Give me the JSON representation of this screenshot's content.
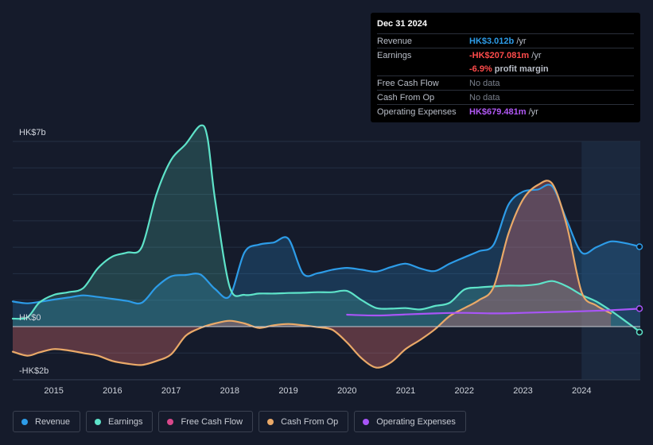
{
  "tooltip": {
    "date": "Dec 31 2024",
    "rows": [
      {
        "label": "Revenue",
        "value": "HK$3.012b",
        "suffix": " /yr",
        "color": "#2d9ce8"
      },
      {
        "label": "Earnings",
        "value": "-HK$207.081m",
        "suffix": " /yr",
        "color": "#ff4b4b"
      },
      {
        "label": "",
        "value": "-6.9%",
        "suffix": " profit margin",
        "color": "#ff4b4b"
      },
      {
        "label": "Free Cash Flow",
        "value": "No data",
        "suffix": "",
        "color": "#7a808c"
      },
      {
        "label": "Cash From Op",
        "value": "No data",
        "suffix": "",
        "color": "#7a808c"
      },
      {
        "label": "Operating Expenses",
        "value": "HK$679.481m",
        "suffix": " /yr",
        "color": "#b158f5"
      }
    ]
  },
  "legend": [
    {
      "label": "Revenue",
      "color": "#2d9ce8"
    },
    {
      "label": "Earnings",
      "color": "#5ee3c9"
    },
    {
      "label": "Free Cash Flow",
      "color": "#d9488b"
    },
    {
      "label": "Cash From Op",
      "color": "#eaa968"
    },
    {
      "label": "Operating Expenses",
      "color": "#a855f7"
    }
  ],
  "chart_data": {
    "type": "area",
    "y_axis_labels": [
      "HK$7b",
      "HK$0",
      "-HK$2b"
    ],
    "ylim": [
      -2,
      7
    ],
    "xlim": [
      2014.3,
      2025.0
    ],
    "x_ticks": [
      2015,
      2016,
      2017,
      2018,
      2019,
      2020,
      2021,
      2022,
      2023,
      2024
    ],
    "x_tick_labels": [
      "2015",
      "2016",
      "2017",
      "2018",
      "2019",
      "2020",
      "2021",
      "2022",
      "2023",
      "2024"
    ],
    "forecast_start": 2024.0,
    "series": [
      {
        "name": "Revenue",
        "color": "#2d9ce8",
        "x": [
          2014.3,
          2014.55,
          2014.8,
          2015.0,
          2015.25,
          2015.5,
          2015.75,
          2016.0,
          2016.25,
          2016.5,
          2016.75,
          2017.0,
          2017.25,
          2017.5,
          2017.75,
          2018.0,
          2018.25,
          2018.5,
          2018.75,
          2019.0,
          2019.25,
          2019.5,
          2019.75,
          2020.0,
          2020.25,
          2020.5,
          2020.75,
          2021.0,
          2021.25,
          2021.5,
          2021.75,
          2022.0,
          2022.25,
          2022.5,
          2022.75,
          2023.0,
          2023.25,
          2023.5,
          2023.75,
          2024.0,
          2024.25,
          2024.5,
          2024.75,
          2025.0
        ],
        "values": [
          0.95,
          0.88,
          0.95,
          1.02,
          1.1,
          1.18,
          1.12,
          1.05,
          0.97,
          0.9,
          1.5,
          1.9,
          1.95,
          1.97,
          1.42,
          1.15,
          2.8,
          3.1,
          3.18,
          3.32,
          2.0,
          2.02,
          2.15,
          2.22,
          2.15,
          2.08,
          2.25,
          2.38,
          2.2,
          2.1,
          2.38,
          2.62,
          2.85,
          3.1,
          4.6,
          5.1,
          5.18,
          5.3,
          4.0,
          2.8,
          3.0,
          3.22,
          3.15,
          3.02
        ]
      },
      {
        "name": "Earnings",
        "color": "#5ee3c9",
        "x": [
          2014.3,
          2014.55,
          2014.75,
          2015.0,
          2015.25,
          2015.5,
          2015.75,
          2016.0,
          2016.25,
          2016.5,
          2016.75,
          2017.0,
          2017.25,
          2017.5,
          2017.62,
          2017.75,
          2018.0,
          2018.25,
          2018.5,
          2018.75,
          2019.0,
          2019.25,
          2019.5,
          2019.75,
          2020.0,
          2020.25,
          2020.5,
          2020.75,
          2021.0,
          2021.25,
          2021.5,
          2021.75,
          2022.0,
          2022.25,
          2022.5,
          2022.75,
          2023.0,
          2023.25,
          2023.5,
          2023.75,
          2024.0,
          2024.25,
          2024.5,
          2024.75,
          2025.0
        ],
        "values": [
          0.3,
          0.35,
          0.9,
          1.2,
          1.3,
          1.45,
          2.2,
          2.65,
          2.8,
          3.0,
          5.0,
          6.3,
          6.9,
          7.6,
          7.15,
          4.8,
          1.5,
          1.2,
          1.25,
          1.25,
          1.27,
          1.28,
          1.3,
          1.3,
          1.35,
          1.0,
          0.7,
          0.68,
          0.7,
          0.65,
          0.78,
          0.9,
          1.4,
          1.48,
          1.52,
          1.55,
          1.55,
          1.6,
          1.72,
          1.52,
          1.2,
          0.95,
          0.6,
          0.2,
          -0.21
        ]
      },
      {
        "name": "Cash From Op",
        "color": "#eaa968",
        "x": [
          2014.3,
          2014.55,
          2014.75,
          2015.0,
          2015.25,
          2015.5,
          2015.75,
          2016.0,
          2016.25,
          2016.5,
          2016.75,
          2017.0,
          2017.25,
          2017.5,
          2017.75,
          2018.0,
          2018.25,
          2018.5,
          2018.75,
          2019.0,
          2019.25,
          2019.5,
          2019.75,
          2020.0,
          2020.25,
          2020.5,
          2020.75,
          2021.0,
          2021.25,
          2021.5,
          2021.75,
          2022.0,
          2022.25,
          2022.5,
          2022.75,
          2023.0,
          2023.25,
          2023.5,
          2023.75,
          2024.0,
          2024.25,
          2024.5
        ],
        "values": [
          -0.95,
          -1.1,
          -0.98,
          -0.85,
          -0.9,
          -1.0,
          -1.1,
          -1.3,
          -1.4,
          -1.45,
          -1.3,
          -1.05,
          -0.35,
          -0.05,
          0.12,
          0.22,
          0.12,
          -0.05,
          0.05,
          0.1,
          0.05,
          -0.02,
          -0.12,
          -0.6,
          -1.2,
          -1.55,
          -1.35,
          -0.85,
          -0.5,
          -0.1,
          0.4,
          0.7,
          1.0,
          1.5,
          3.5,
          4.8,
          5.35,
          5.4,
          3.8,
          1.3,
          0.8,
          0.5
        ]
      },
      {
        "name": "Operating Expenses",
        "color": "#a855f7",
        "x": [
          2020.0,
          2020.5,
          2021.0,
          2021.5,
          2022.0,
          2022.5,
          2023.0,
          2023.5,
          2024.0,
          2024.5,
          2025.0
        ],
        "values": [
          0.45,
          0.42,
          0.46,
          0.5,
          0.52,
          0.5,
          0.52,
          0.55,
          0.58,
          0.62,
          0.68
        ]
      }
    ]
  }
}
